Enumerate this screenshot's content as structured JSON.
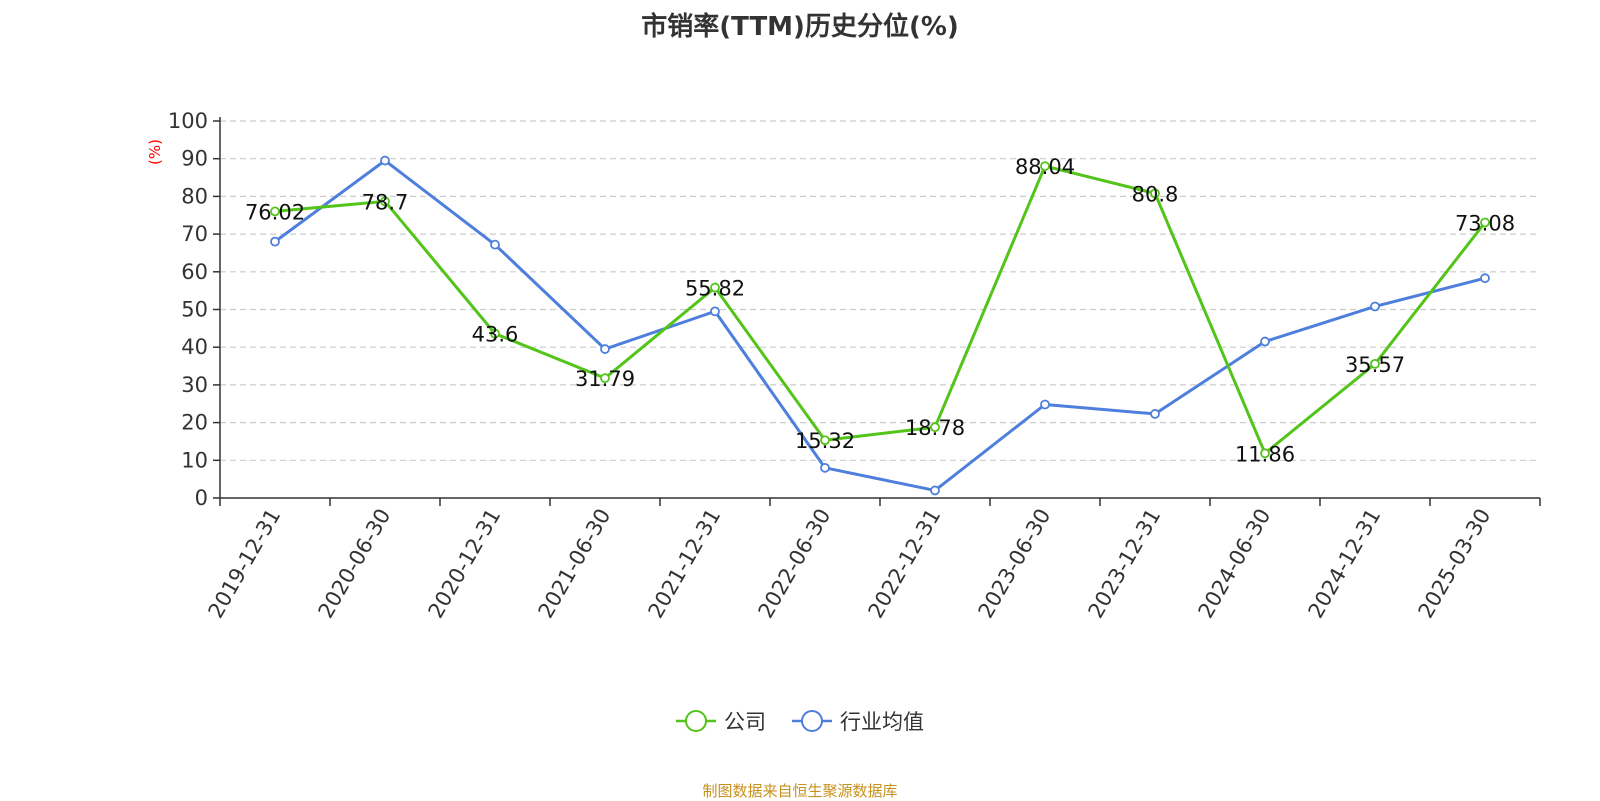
{
  "chart_data": {
    "type": "line",
    "title": "市销率(TTM)历史分位(%)",
    "ylabel": "(%)",
    "xlabel": "",
    "ylim": [
      0,
      100
    ],
    "yticks": [
      0,
      10,
      20,
      30,
      40,
      50,
      60,
      70,
      80,
      90,
      100
    ],
    "grid": true,
    "legend_position": "bottom-center",
    "categories": [
      "2019-12-31",
      "2020-06-30",
      "2020-12-31",
      "2021-06-30",
      "2021-12-31",
      "2022-06-30",
      "2022-12-31",
      "2023-06-30",
      "2023-12-31",
      "2024-06-30",
      "2024-12-31",
      "2025-03-30"
    ],
    "series": [
      {
        "name": "公司",
        "color": "#52c41a",
        "values": [
          76.02,
          78.7,
          43.6,
          31.79,
          55.82,
          15.32,
          18.78,
          88.04,
          80.8,
          11.86,
          35.57,
          73.08
        ],
        "labels": [
          "76.02",
          "78.7",
          "43.6",
          "31.79",
          "55.82",
          "15.32",
          "18.78",
          "88.04",
          "80.8",
          "11.86",
          "35.57",
          "73.08"
        ]
      },
      {
        "name": "行业均值",
        "color": "#4f7fdc",
        "values": [
          68,
          89.5,
          67.2,
          39.5,
          49.5,
          8,
          2,
          24.8,
          22.3,
          41.5,
          50.8,
          58.3
        ]
      }
    ]
  },
  "source_note": "制图数据来自恒生聚源数据库",
  "colors": {
    "axis": "#333333",
    "grid": "#cccccc",
    "ylabel": "#ff0000",
    "source": "#c8901c"
  }
}
